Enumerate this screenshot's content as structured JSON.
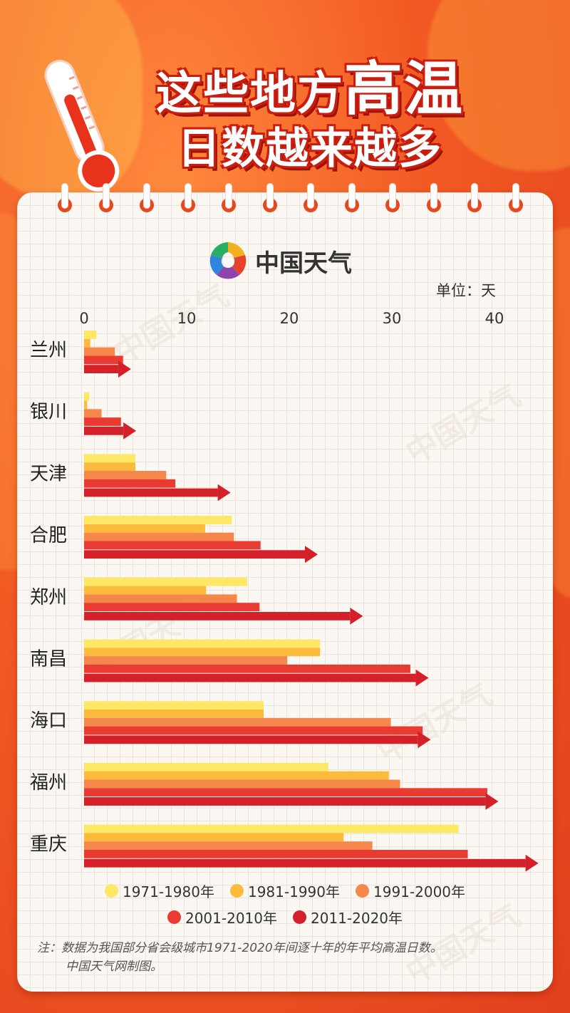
{
  "header": {
    "title_part1": "这些地方",
    "title_part2": "高温",
    "title_line2": "日数越来越多"
  },
  "brand": {
    "name": "中国天气",
    "logo_icon": "china-weather-logo-icon"
  },
  "unit_label": "单位：天",
  "colors": {
    "bg": "#f25a24",
    "series": [
      "#fde865",
      "#fcbb3c",
      "#f6874a",
      "#ea3b33",
      "#d42129"
    ]
  },
  "chart_data": {
    "type": "bar",
    "orientation": "horizontal",
    "x_ticks": [
      "0",
      "10",
      "20",
      "30",
      "40"
    ],
    "xlim": [
      0,
      45
    ],
    "categories": [
      "兰州",
      "银川",
      "天津",
      "合肥",
      "郑州",
      "南昌",
      "海口",
      "福州",
      "重庆"
    ],
    "series": [
      {
        "name": "1971-1980年",
        "values": [
          1.2,
          0.5,
          5.0,
          14.4,
          15.9,
          23.0,
          17.5,
          23.8,
          36.5
        ]
      },
      {
        "name": "1981-1990年",
        "values": [
          0.6,
          0.3,
          5.0,
          11.8,
          11.9,
          23.0,
          17.5,
          29.7,
          25.3
        ]
      },
      {
        "name": "1991-2000年",
        "values": [
          3.0,
          1.7,
          8.0,
          14.6,
          14.9,
          19.8,
          29.9,
          30.8,
          28.1
        ]
      },
      {
        "name": "2001-2010年",
        "values": [
          3.8,
          3.6,
          8.9,
          17.2,
          17.1,
          31.8,
          33.0,
          39.3,
          37.4
        ]
      },
      {
        "name": "2011-2020年",
        "values": [
          4.3,
          4.8,
          14.0,
          22.5,
          26.9,
          33.3,
          33.5,
          40.1,
          44.0
        ]
      }
    ],
    "last_series_style": "arrow"
  },
  "note": {
    "line1": "注：数据为我国部分省会级城市1971-2020年间逐十年的年平均高温日数。",
    "line2": "中国天气网制图。"
  }
}
